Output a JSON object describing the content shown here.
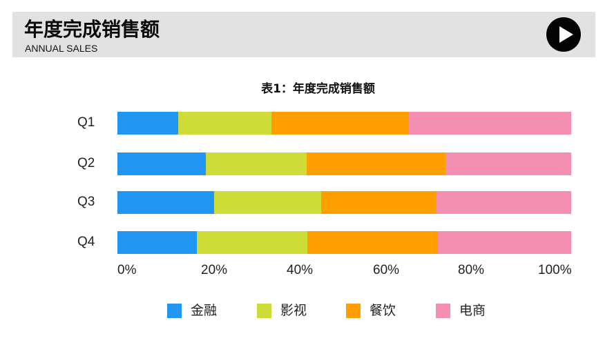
{
  "header": {
    "title": "年度完成销售额",
    "subtitle": "ANNUAL SALES",
    "play_icon": "play-icon"
  },
  "colors": {
    "header_bg": "#e2e2e2",
    "金融": "#2196f3",
    "影视": "#cddc39",
    "餐饮": "#ff9f00",
    "电商": "#f48fb1"
  },
  "chart_data": {
    "type": "bar",
    "orientation": "horizontal",
    "stacked": true,
    "normalized_percent": true,
    "title": "表1：年度完成销售额",
    "xlabel": "",
    "ylabel": "",
    "xlim": [
      0,
      100
    ],
    "x_ticks": [
      "0%",
      "20%",
      "40%",
      "60%",
      "80%",
      "100%"
    ],
    "categories": [
      "Q1",
      "Q2",
      "Q3",
      "Q4"
    ],
    "series": [
      {
        "name": "金融",
        "color": "#2196f3",
        "values": [
          13.4,
          19.5,
          21.3,
          17.5
        ]
      },
      {
        "name": "影视",
        "color": "#cddc39",
        "values": [
          20.5,
          22.2,
          23.6,
          24.4
        ]
      },
      {
        "name": "餐饮",
        "color": "#ff9f00",
        "values": [
          30.3,
          30.6,
          25.4,
          28.8
        ]
      },
      {
        "name": "电商",
        "color": "#f48fb1",
        "values": [
          35.8,
          27.7,
          29.7,
          29.3
        ]
      }
    ],
    "legend_position": "bottom",
    "grid": false
  }
}
